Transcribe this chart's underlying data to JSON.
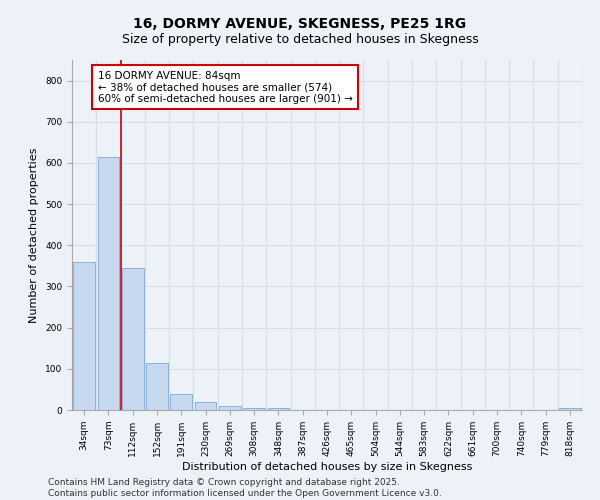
{
  "title": "16, DORMY AVENUE, SKEGNESS, PE25 1RG",
  "subtitle": "Size of property relative to detached houses in Skegness",
  "xlabel": "Distribution of detached houses by size in Skegness",
  "ylabel": "Number of detached properties",
  "bar_labels": [
    "34sqm",
    "73sqm",
    "112sqm",
    "152sqm",
    "191sqm",
    "230sqm",
    "269sqm",
    "308sqm",
    "348sqm",
    "387sqm",
    "426sqm",
    "465sqm",
    "504sqm",
    "544sqm",
    "583sqm",
    "622sqm",
    "661sqm",
    "700sqm",
    "740sqm",
    "779sqm",
    "818sqm"
  ],
  "bar_values": [
    360,
    615,
    345,
    115,
    40,
    20,
    10,
    5,
    5,
    0,
    0,
    0,
    0,
    0,
    0,
    0,
    0,
    0,
    0,
    0,
    5
  ],
  "bar_color": "#c8d8ef",
  "bar_edge_color": "#7aaad4",
  "background_color": "#edf2f9",
  "grid_color": "#d8dfe8",
  "vline_x": 1.5,
  "vline_color": "#cc0000",
  "annotation_text": "16 DORMY AVENUE: 84sqm\n← 38% of detached houses are smaller (574)\n60% of semi-detached houses are larger (901) →",
  "annotation_box_color": "#ffffff",
  "annotation_box_edge_color": "#cc0000",
  "ylim": [
    0,
    850
  ],
  "yticks": [
    0,
    100,
    200,
    300,
    400,
    500,
    600,
    700,
    800
  ],
  "footnote": "Contains HM Land Registry data © Crown copyright and database right 2025.\nContains public sector information licensed under the Open Government Licence v3.0.",
  "title_fontsize": 10,
  "subtitle_fontsize": 9,
  "xlabel_fontsize": 8,
  "ylabel_fontsize": 8,
  "tick_fontsize": 6.5,
  "annotation_fontsize": 7.5,
  "footnote_fontsize": 6.5
}
